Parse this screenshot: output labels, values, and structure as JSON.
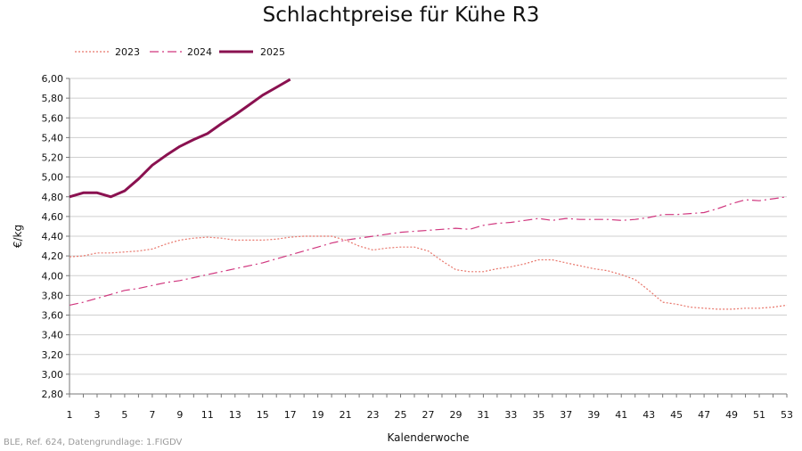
{
  "chart_data": {
    "type": "line",
    "title": "Schlachtpreise für Kühe R3",
    "xlabel": "Kalenderwoche",
    "ylabel": "€/kg",
    "xlim": [
      1,
      53
    ],
    "ylim": [
      2.8,
      6.0
    ],
    "y_ticks": [
      2.8,
      3.0,
      3.2,
      3.4,
      3.6,
      3.8,
      4.0,
      4.2,
      4.4,
      4.6,
      4.8,
      5.0,
      5.2,
      5.4,
      5.6,
      5.8,
      6.0
    ],
    "y_tick_labels": [
      "2,80",
      "3,00",
      "3,20",
      "3,40",
      "3,60",
      "3,80",
      "4,00",
      "4,20",
      "4,40",
      "4,60",
      "4,80",
      "5,00",
      "5,20",
      "5,40",
      "5,60",
      "5,80",
      "6,00"
    ],
    "x_tick_labels": [
      "1",
      "3",
      "5",
      "7",
      "9",
      "11",
      "13",
      "15",
      "17",
      "19",
      "21",
      "23",
      "25",
      "27",
      "29",
      "31",
      "33",
      "35",
      "37",
      "39",
      "41",
      "43",
      "45",
      "47",
      "49",
      "51",
      "53"
    ],
    "grid": "horizontal",
    "legend": "top-left",
    "series": [
      {
        "name": "2023",
        "color": "#e8766b",
        "style": "dotted",
        "x": [
          1,
          2,
          3,
          4,
          5,
          6,
          7,
          8,
          9,
          10,
          11,
          12,
          13,
          14,
          15,
          16,
          17,
          18,
          19,
          20,
          21,
          22,
          23,
          24,
          25,
          26,
          27,
          28,
          29,
          30,
          31,
          32,
          33,
          34,
          35,
          36,
          37,
          38,
          39,
          40,
          41,
          42,
          43,
          44,
          45,
          46,
          47,
          48,
          49,
          50,
          51,
          52,
          53
        ],
        "values": [
          4.19,
          4.2,
          4.23,
          4.23,
          4.24,
          4.25,
          4.27,
          4.32,
          4.36,
          4.38,
          4.39,
          4.38,
          4.36,
          4.36,
          4.36,
          4.37,
          4.39,
          4.4,
          4.4,
          4.4,
          4.36,
          4.3,
          4.26,
          4.28,
          4.29,
          4.29,
          4.25,
          4.15,
          4.06,
          4.04,
          4.04,
          4.07,
          4.09,
          4.12,
          4.16,
          4.16,
          4.13,
          4.1,
          4.07,
          4.05,
          4.01,
          3.96,
          3.85,
          3.73,
          3.71,
          3.68,
          3.67,
          3.66,
          3.66,
          3.67,
          3.67,
          3.68,
          3.7
        ]
      },
      {
        "name": "2024",
        "color": "#d0367e",
        "style": "dashdot",
        "x": [
          1,
          2,
          3,
          4,
          5,
          6,
          7,
          8,
          9,
          10,
          11,
          12,
          13,
          14,
          15,
          16,
          17,
          18,
          19,
          20,
          21,
          22,
          23,
          24,
          25,
          26,
          27,
          28,
          29,
          30,
          31,
          32,
          33,
          34,
          35,
          36,
          37,
          38,
          39,
          40,
          41,
          42,
          43,
          44,
          45,
          46,
          47,
          48,
          49,
          50,
          51,
          52,
          53
        ],
        "values": [
          3.7,
          3.73,
          3.77,
          3.81,
          3.85,
          3.87,
          3.9,
          3.93,
          3.95,
          3.98,
          4.01,
          4.04,
          4.07,
          4.1,
          4.13,
          4.17,
          4.21,
          4.25,
          4.29,
          4.33,
          4.36,
          4.38,
          4.4,
          4.42,
          4.44,
          4.45,
          4.46,
          4.47,
          4.48,
          4.47,
          4.51,
          4.53,
          4.54,
          4.56,
          4.58,
          4.56,
          4.58,
          4.57,
          4.57,
          4.57,
          4.56,
          4.57,
          4.59,
          4.62,
          4.62,
          4.63,
          4.64,
          4.68,
          4.73,
          4.77,
          4.76,
          4.78,
          4.8
        ]
      },
      {
        "name": "2025",
        "color": "#8a1150",
        "style": "solid",
        "x": [
          1,
          2,
          3,
          4,
          5,
          6,
          7,
          8,
          9,
          10,
          11,
          12,
          13,
          14,
          15,
          16,
          17
        ],
        "values": [
          4.8,
          4.84,
          4.84,
          4.8,
          4.86,
          4.98,
          5.12,
          5.22,
          5.31,
          5.38,
          5.44,
          5.54,
          5.63,
          5.73,
          5.83,
          5.91,
          5.99
        ]
      }
    ]
  },
  "footer": {
    "source": "BLE, Ref. 624, Datengrundlage: 1.FIGDV"
  }
}
